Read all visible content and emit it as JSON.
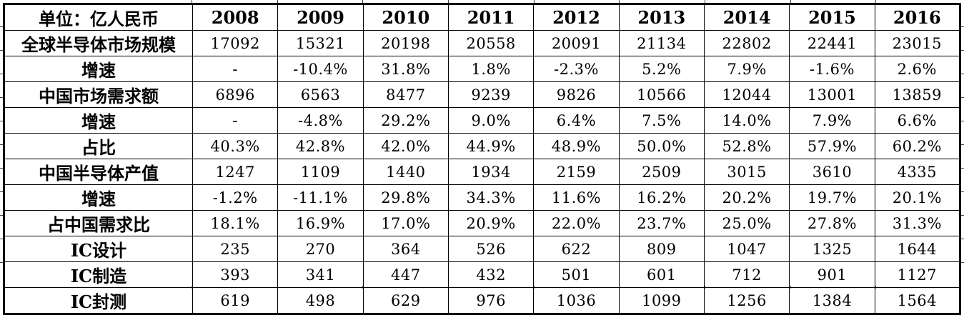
{
  "colors": {
    "border": "#000000",
    "background": "#ffffff",
    "text": "#000000"
  },
  "chart_data": {
    "type": "table",
    "unit_header": "单位：亿人民币",
    "columns": [
      "2008",
      "2009",
      "2010",
      "2011",
      "2012",
      "2013",
      "2014",
      "2015",
      "2016"
    ],
    "rows": [
      {
        "label": "全球半导体市场规模",
        "values": [
          "17092",
          "15321",
          "20198",
          "20558",
          "20091",
          "21134",
          "22802",
          "22441",
          "23015"
        ]
      },
      {
        "label": "增速",
        "values": [
          "-",
          "-10.4%",
          "31.8%",
          "1.8%",
          "-2.3%",
          "5.2%",
          "7.9%",
          "-1.6%",
          "2.6%"
        ]
      },
      {
        "label": "中国市场需求额",
        "values": [
          "6896",
          "6563",
          "8477",
          "9239",
          "9826",
          "10566",
          "12044",
          "13001",
          "13859"
        ]
      },
      {
        "label": "增速",
        "values": [
          "-",
          "-4.8%",
          "29.2%",
          "9.0%",
          "6.4%",
          "7.5%",
          "14.0%",
          "7.9%",
          "6.6%"
        ]
      },
      {
        "label": "占比",
        "values": [
          "40.3%",
          "42.8%",
          "42.0%",
          "44.9%",
          "48.9%",
          "50.0%",
          "52.8%",
          "57.9%",
          "60.2%"
        ]
      },
      {
        "label": "中国半导体产值",
        "values": [
          "1247",
          "1109",
          "1440",
          "1934",
          "2159",
          "2509",
          "3015",
          "3610",
          "4335"
        ]
      },
      {
        "label": "增速",
        "values": [
          "-1.2%",
          "-11.1%",
          "29.8%",
          "34.3%",
          "11.6%",
          "16.2%",
          "20.2%",
          "19.7%",
          "20.1%"
        ]
      },
      {
        "label": "占中国需求比",
        "values": [
          "18.1%",
          "16.9%",
          "17.0%",
          "20.9%",
          "22.0%",
          "23.7%",
          "25.0%",
          "27.8%",
          "31.3%"
        ]
      },
      {
        "label": "IC设计",
        "values": [
          "235",
          "270",
          "364",
          "526",
          "622",
          "809",
          "1047",
          "1325",
          "1644"
        ]
      },
      {
        "label": "IC制造",
        "values": [
          "393",
          "341",
          "447",
          "432",
          "501",
          "601",
          "712",
          "901",
          "1127"
        ]
      },
      {
        "label": "IC封测",
        "values": [
          "619",
          "498",
          "629",
          "976",
          "1036",
          "1099",
          "1256",
          "1384",
          "1564"
        ]
      }
    ]
  }
}
